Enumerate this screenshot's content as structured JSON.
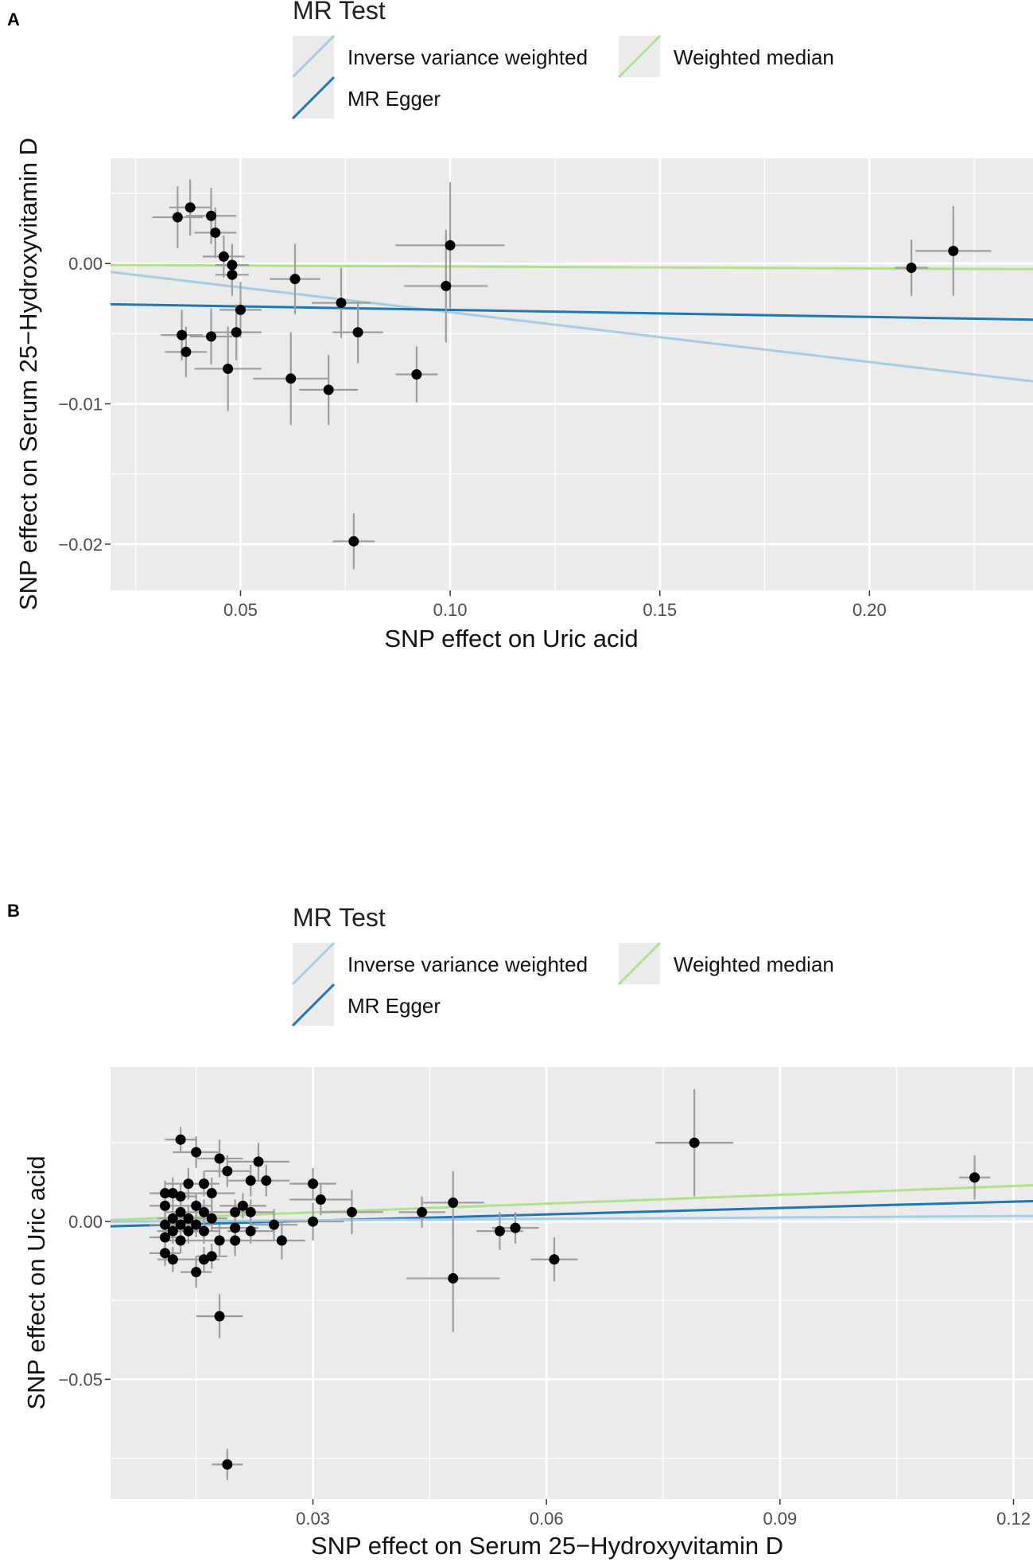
{
  "chart_data": [
    {
      "panel": "A",
      "type": "scatter",
      "legend": {
        "title": "MR Test",
        "items": [
          {
            "key": "ivw",
            "label": "Inverse variance weighted",
            "color": "#a6cee3"
          },
          {
            "key": "wm",
            "label": "Weighted median",
            "color": "#b2df8a"
          },
          {
            "key": "egger",
            "label": "MR Egger",
            "color": "#1f78b4"
          }
        ]
      },
      "xlabel": "SNP effect on Uric acid",
      "ylabel": "SNP effect on Serum 25−Hydroxyvitamin D",
      "xlim": [
        0.019,
        0.239
      ],
      "ylim": [
        -0.0233,
        0.0075
      ],
      "xticks": [
        {
          "value": 0.05,
          "label": "0.05"
        },
        {
          "value": 0.1,
          "label": "0.10"
        },
        {
          "value": 0.15,
          "label": "0.15"
        },
        {
          "value": 0.2,
          "label": "0.20"
        }
      ],
      "yticks": [
        {
          "value": 0.0,
          "label": "0.00"
        },
        {
          "value": -0.01,
          "label": "−0.01"
        },
        {
          "value": -0.02,
          "label": "−0.02"
        }
      ],
      "points": [
        {
          "x": 0.035,
          "y": 0.0033,
          "xe": 0.006,
          "ye": 0.0022
        },
        {
          "x": 0.038,
          "y": 0.004,
          "xe": 0.005,
          "ye": 0.002
        },
        {
          "x": 0.043,
          "y": 0.0034,
          "xe": 0.006,
          "ye": 0.002
        },
        {
          "x": 0.044,
          "y": 0.0022,
          "xe": 0.005,
          "ye": 0.0018
        },
        {
          "x": 0.046,
          "y": 0.0005,
          "xe": 0.005,
          "ye": 0.0015
        },
        {
          "x": 0.048,
          "y": -0.0001,
          "xe": 0.004,
          "ye": 0.0015
        },
        {
          "x": 0.048,
          "y": -0.0008,
          "xe": 0.004,
          "ye": 0.0015
        },
        {
          "x": 0.05,
          "y": -0.0033,
          "xe": 0.005,
          "ye": 0.002
        },
        {
          "x": 0.049,
          "y": -0.0049,
          "xe": 0.006,
          "ye": 0.002
        },
        {
          "x": 0.036,
          "y": -0.0051,
          "xe": 0.005,
          "ye": 0.0018
        },
        {
          "x": 0.037,
          "y": -0.0063,
          "xe": 0.005,
          "ye": 0.0018
        },
        {
          "x": 0.043,
          "y": -0.0052,
          "xe": 0.005,
          "ye": 0.002
        },
        {
          "x": 0.047,
          "y": -0.0075,
          "xe": 0.008,
          "ye": 0.003
        },
        {
          "x": 0.063,
          "y": -0.0011,
          "xe": 0.006,
          "ye": 0.0025
        },
        {
          "x": 0.062,
          "y": -0.0082,
          "xe": 0.009,
          "ye": 0.0033
        },
        {
          "x": 0.071,
          "y": -0.009,
          "xe": 0.007,
          "ye": 0.0025
        },
        {
          "x": 0.074,
          "y": -0.0028,
          "xe": 0.007,
          "ye": 0.0025
        },
        {
          "x": 0.078,
          "y": -0.0049,
          "xe": 0.006,
          "ye": 0.0022
        },
        {
          "x": 0.077,
          "y": -0.0198,
          "xe": 0.005,
          "ye": 0.002
        },
        {
          "x": 0.092,
          "y": -0.0079,
          "xe": 0.005,
          "ye": 0.002
        },
        {
          "x": 0.099,
          "y": -0.0016,
          "xe": 0.01,
          "ye": 0.004
        },
        {
          "x": 0.1,
          "y": 0.0013,
          "xe": 0.013,
          "ye": 0.0045
        },
        {
          "x": 0.21,
          "y": -0.0003,
          "xe": 0.004,
          "ye": 0.002
        },
        {
          "x": 0.22,
          "y": 0.0009,
          "xe": 0.009,
          "ye": 0.0032
        }
      ],
      "lines": [
        {
          "key": "wm",
          "x": [
            0.019,
            0.239
          ],
          "y": [
            -0.0001,
            -0.0004
          ]
        },
        {
          "key": "ivw",
          "x": [
            0.019,
            0.239
          ],
          "y": [
            -0.0006,
            -0.0084
          ]
        },
        {
          "key": "egger",
          "x": [
            0.019,
            0.239
          ],
          "y": [
            -0.0029,
            -0.004
          ]
        }
      ]
    },
    {
      "panel": "B",
      "type": "scatter",
      "legend": {
        "title": "MR Test",
        "items": [
          {
            "key": "ivw",
            "label": "Inverse variance weighted",
            "color": "#a6cee3"
          },
          {
            "key": "wm",
            "label": "Weighted median",
            "color": "#b2df8a"
          },
          {
            "key": "egger",
            "label": "MR Egger",
            "color": "#1f78b4"
          }
        ]
      },
      "xlabel": "SNP effect on Serum 25−Hydroxyvitamin D",
      "ylabel": "SNP effect on Uric acid",
      "xlim": [
        0.004,
        0.1225
      ],
      "ylim": [
        -0.088,
        0.049
      ],
      "xticks": [
        {
          "value": 0.03,
          "label": "0.03"
        },
        {
          "value": 0.06,
          "label": "0.06"
        },
        {
          "value": 0.09,
          "label": "0.09"
        },
        {
          "value": 0.12,
          "label": "0.12"
        }
      ],
      "yticks": [
        {
          "value": 0.0,
          "label": "0.00"
        },
        {
          "value": -0.05,
          "label": "−0.05"
        }
      ],
      "points": [
        {
          "x": 0.013,
          "y": 0.026,
          "xe": 0.002,
          "ye": 0.004
        },
        {
          "x": 0.015,
          "y": 0.022,
          "xe": 0.003,
          "ye": 0.005
        },
        {
          "x": 0.018,
          "y": 0.02,
          "xe": 0.003,
          "ye": 0.006
        },
        {
          "x": 0.023,
          "y": 0.019,
          "xe": 0.004,
          "ye": 0.006
        },
        {
          "x": 0.019,
          "y": 0.016,
          "xe": 0.003,
          "ye": 0.005
        },
        {
          "x": 0.022,
          "y": 0.013,
          "xe": 0.003,
          "ye": 0.005
        },
        {
          "x": 0.024,
          "y": 0.013,
          "xe": 0.003,
          "ye": 0.005
        },
        {
          "x": 0.014,
          "y": 0.012,
          "xe": 0.003,
          "ye": 0.005
        },
        {
          "x": 0.016,
          "y": 0.012,
          "xe": 0.002,
          "ye": 0.004
        },
        {
          "x": 0.03,
          "y": 0.012,
          "xe": 0.003,
          "ye": 0.005
        },
        {
          "x": 0.011,
          "y": 0.009,
          "xe": 0.002,
          "ye": 0.004
        },
        {
          "x": 0.012,
          "y": 0.009,
          "xe": 0.002,
          "ye": 0.005
        },
        {
          "x": 0.017,
          "y": 0.009,
          "xe": 0.003,
          "ye": 0.005
        },
        {
          "x": 0.013,
          "y": 0.008,
          "xe": 0.002,
          "ye": 0.004
        },
        {
          "x": 0.031,
          "y": 0.007,
          "xe": 0.004,
          "ye": 0.005
        },
        {
          "x": 0.011,
          "y": 0.005,
          "xe": 0.002,
          "ye": 0.004
        },
        {
          "x": 0.015,
          "y": 0.005,
          "xe": 0.002,
          "ye": 0.004
        },
        {
          "x": 0.021,
          "y": 0.005,
          "xe": 0.003,
          "ye": 0.004
        },
        {
          "x": 0.048,
          "y": 0.006,
          "xe": 0.004,
          "ye": 0.01
        },
        {
          "x": 0.013,
          "y": 0.003,
          "xe": 0.002,
          "ye": 0.004
        },
        {
          "x": 0.016,
          "y": 0.003,
          "xe": 0.002,
          "ye": 0.004
        },
        {
          "x": 0.02,
          "y": 0.003,
          "xe": 0.003,
          "ye": 0.004
        },
        {
          "x": 0.022,
          "y": 0.003,
          "xe": 0.003,
          "ye": 0.004
        },
        {
          "x": 0.035,
          "y": 0.003,
          "xe": 0.004,
          "ye": 0.007
        },
        {
          "x": 0.044,
          "y": 0.003,
          "xe": 0.003,
          "ye": 0.005
        },
        {
          "x": 0.012,
          "y": 0.001,
          "xe": 0.002,
          "ye": 0.004
        },
        {
          "x": 0.014,
          "y": 0.001,
          "xe": 0.002,
          "ye": 0.004
        },
        {
          "x": 0.017,
          "y": 0.001,
          "xe": 0.002,
          "ye": 0.004
        },
        {
          "x": 0.011,
          "y": -0.001,
          "xe": 0.002,
          "ye": 0.004
        },
        {
          "x": 0.013,
          "y": -0.001,
          "xe": 0.002,
          "ye": 0.004
        },
        {
          "x": 0.015,
          "y": -0.001,
          "xe": 0.002,
          "ye": 0.004
        },
        {
          "x": 0.02,
          "y": -0.002,
          "xe": 0.003,
          "ye": 0.004
        },
        {
          "x": 0.025,
          "y": -0.001,
          "xe": 0.003,
          "ye": 0.005
        },
        {
          "x": 0.03,
          "y": 0.0,
          "xe": 0.004,
          "ye": 0.006
        },
        {
          "x": 0.012,
          "y": -0.003,
          "xe": 0.002,
          "ye": 0.004
        },
        {
          "x": 0.014,
          "y": -0.003,
          "xe": 0.002,
          "ye": 0.004
        },
        {
          "x": 0.016,
          "y": -0.003,
          "xe": 0.002,
          "ye": 0.004
        },
        {
          "x": 0.022,
          "y": -0.003,
          "xe": 0.003,
          "ye": 0.004
        },
        {
          "x": 0.011,
          "y": -0.005,
          "xe": 0.002,
          "ye": 0.004
        },
        {
          "x": 0.013,
          "y": -0.006,
          "xe": 0.002,
          "ye": 0.004
        },
        {
          "x": 0.018,
          "y": -0.006,
          "xe": 0.003,
          "ye": 0.005
        },
        {
          "x": 0.02,
          "y": -0.006,
          "xe": 0.003,
          "ye": 0.005
        },
        {
          "x": 0.026,
          "y": -0.006,
          "xe": 0.003,
          "ye": 0.006
        },
        {
          "x": 0.011,
          "y": -0.01,
          "xe": 0.002,
          "ye": 0.004
        },
        {
          "x": 0.017,
          "y": -0.011,
          "xe": 0.002,
          "ye": 0.004
        },
        {
          "x": 0.012,
          "y": -0.012,
          "xe": 0.002,
          "ye": 0.004
        },
        {
          "x": 0.016,
          "y": -0.012,
          "xe": 0.002,
          "ye": 0.004
        },
        {
          "x": 0.061,
          "y": -0.012,
          "xe": 0.003,
          "ye": 0.007
        },
        {
          "x": 0.054,
          "y": -0.003,
          "xe": 0.003,
          "ye": 0.006
        },
        {
          "x": 0.056,
          "y": -0.002,
          "xe": 0.003,
          "ye": 0.005
        },
        {
          "x": 0.015,
          "y": -0.016,
          "xe": 0.002,
          "ye": 0.005
        },
        {
          "x": 0.048,
          "y": -0.018,
          "xe": 0.006,
          "ye": 0.017
        },
        {
          "x": 0.018,
          "y": -0.03,
          "xe": 0.003,
          "ye": 0.007
        },
        {
          "x": 0.019,
          "y": -0.077,
          "xe": 0.002,
          "ye": 0.005
        },
        {
          "x": 0.079,
          "y": 0.025,
          "xe": 0.005,
          "ye": 0.017
        },
        {
          "x": 0.115,
          "y": 0.014,
          "xe": 0.002,
          "ye": 0.007
        }
      ],
      "lines": [
        {
          "key": "wm",
          "x": [
            0.004,
            0.1225
          ],
          "y": [
            0.0005,
            0.0115
          ]
        },
        {
          "key": "egger",
          "x": [
            0.004,
            0.1225
          ],
          "y": [
            -0.0015,
            0.0065
          ]
        },
        {
          "key": "ivw",
          "x": [
            0.004,
            0.1225
          ],
          "y": [
            0.0,
            0.0018
          ]
        }
      ]
    }
  ]
}
